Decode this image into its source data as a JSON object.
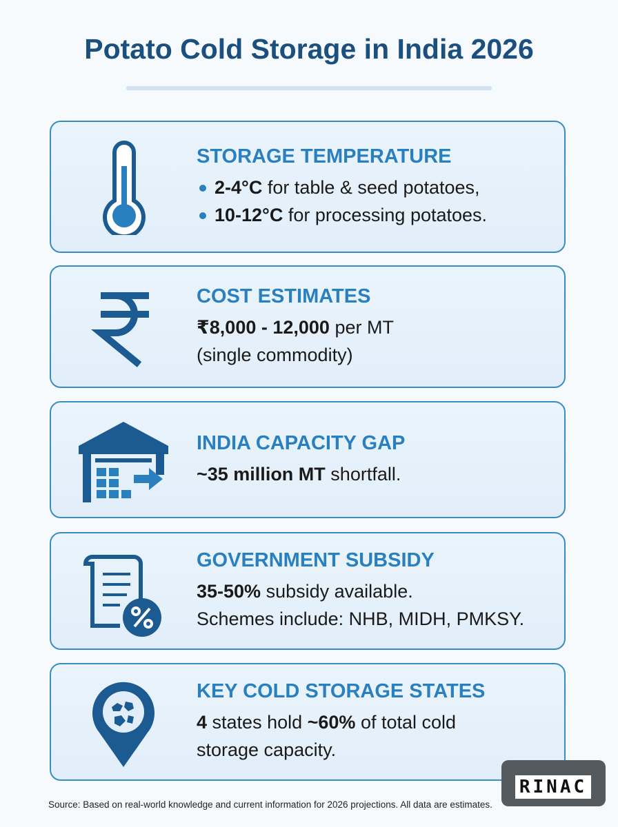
{
  "title": "Potato Cold Storage in India 2026",
  "cards": [
    {
      "heading": "STORAGE TEMPERATURE",
      "bullets": true,
      "lines": [
        [
          {
            "text": "2-4°C",
            "bold": true
          },
          {
            "text": " for table & seed potatoes,"
          }
        ],
        [
          {
            "text": "10-12°C",
            "bold": true
          },
          {
            "text": " for processing potatoes."
          }
        ]
      ]
    },
    {
      "heading": "COST ESTIMATES",
      "lines": [
        [
          {
            "text": "₹8,000 - 12,000",
            "bold": true
          },
          {
            "text": " per MT"
          }
        ],
        [
          {
            "text": "(single commodity)"
          }
        ]
      ]
    },
    {
      "heading": "INDIA CAPACITY GAP",
      "lines": [
        [
          {
            "text": "~35 million MT",
            "bold": true
          },
          {
            "text": " shortfall."
          }
        ]
      ]
    },
    {
      "heading": "GOVERNMENT SUBSIDY",
      "lines": [
        [
          {
            "text": "35-50%",
            "bold": true
          },
          {
            "text": " subsidy available."
          }
        ],
        [
          {
            "text": "Schemes include: NHB, MIDH, PMKSY."
          }
        ]
      ]
    },
    {
      "heading": "KEY COLD STORAGE STATES",
      "lines": [
        [
          {
            "text": "4",
            "bold": true
          },
          {
            "text": " states hold "
          },
          {
            "text": "~60%",
            "bold": true
          },
          {
            "text": " of total cold"
          }
        ],
        [
          {
            "text": "storage capacity."
          }
        ]
      ]
    }
  ],
  "source": "Source: Based on real-world knowledge and current information for 2026 projections. All data are estimates.",
  "logo": "RINAC"
}
